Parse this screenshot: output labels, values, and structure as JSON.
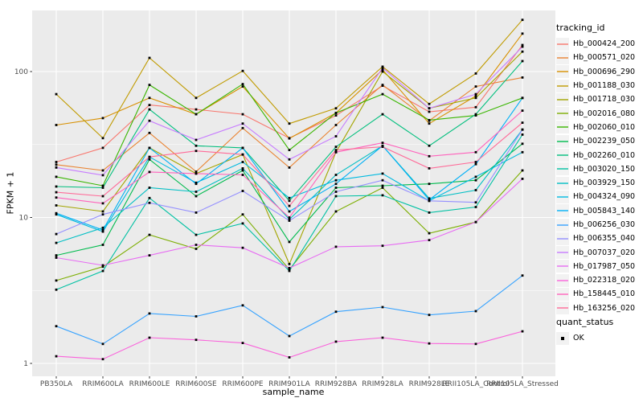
{
  "figure": {
    "background": "#FFFFFF",
    "panel_background": "#EBEBEB",
    "gridline_color": "#FFFFFF",
    "axis_text_color": "#4D4D4D",
    "tick_mark_color": "#333333",
    "point_color": "#000000",
    "legend_key_fill": "#F2F2F2"
  },
  "chart_data": {
    "type": "line",
    "xlabel": "sample_name",
    "ylabel": "FPKM + 1",
    "y_scale": "log10",
    "ylim": [
      0.82,
      262
    ],
    "y_ticks": [
      1,
      10,
      100
    ],
    "y_minor_ticks": [
      3.1623,
      31.623
    ],
    "grid": "on",
    "legend_position": "right",
    "categories": [
      "PB350LA",
      "RRIM600LA",
      "RRIM600LE",
      "RRIM600SE",
      "RRIM600PE",
      "RRIM901LA",
      "RRIM928BA",
      "RRIM928LA",
      "RRIM928LE",
      "RRII105LA_Control",
      "RRII105LA_Stressed"
    ],
    "series": [
      {
        "name": "Hb_000424_200",
        "color": "#F8766D",
        "values": [
          24,
          30,
          59,
          55,
          51,
          35,
          50,
          80,
          53,
          57,
          152
        ]
      },
      {
        "name": "Hb_000571_020",
        "color": "#EA8331",
        "values": [
          23,
          21,
          38,
          20.6,
          41,
          22,
          43,
          81,
          46,
          79,
          91
        ]
      },
      {
        "name": "Hb_000696_290",
        "color": "#D89000",
        "values": [
          43,
          48,
          66,
          51,
          79,
          34.8,
          52,
          103,
          44,
          68,
          182
        ]
      },
      {
        "name": "Hb_001188_030",
        "color": "#C09B00",
        "values": [
          70,
          35,
          124,
          66,
          101,
          44,
          56,
          108,
          60,
          97,
          226
        ]
      },
      {
        "name": "Hb_001718_030",
        "color": "#A3A500",
        "values": [
          12.1,
          11,
          30,
          20,
          27,
          4.8,
          28,
          100,
          56,
          66,
          137
        ]
      },
      {
        "name": "Hb_002016_080",
        "color": "#7CAE00",
        "values": [
          3.7,
          4.6,
          7.6,
          6.1,
          10.5,
          4.4,
          11,
          16,
          7.8,
          9.3,
          21
        ]
      },
      {
        "name": "Hb_002060_010",
        "color": "#39B600",
        "values": [
          19,
          16.5,
          81,
          51,
          82,
          29,
          52,
          70,
          46.5,
          50,
          66
        ]
      },
      {
        "name": "Hb_002239_050",
        "color": "#00BB4E",
        "values": [
          5.5,
          6.5,
          25,
          14,
          21,
          6.8,
          16,
          16.5,
          17,
          18,
          32
        ]
      },
      {
        "name": "Hb_002260_010",
        "color": "#00BF7D",
        "values": [
          16.3,
          16,
          55,
          31,
          30,
          13,
          30.5,
          51,
          31,
          51,
          118
        ]
      },
      {
        "name": "Hb_003020_150",
        "color": "#00C1A3",
        "values": [
          3.2,
          4.3,
          13.6,
          7.6,
          9.1,
          4.3,
          14,
          14.2,
          10.8,
          11.8,
          37
        ]
      },
      {
        "name": "Hb_003929_150",
        "color": "#00BFC4",
        "values": [
          6.7,
          8.5,
          16,
          15,
          21.7,
          9.7,
          19.6,
          31,
          13.5,
          15.4,
          40
        ]
      },
      {
        "name": "Hb_004324_090",
        "color": "#00BAE0",
        "values": [
          10.5,
          8,
          26,
          17.3,
          24,
          13.6,
          18,
          20,
          13,
          19,
          28
        ]
      },
      {
        "name": "Hb_005843_140",
        "color": "#00B0F6",
        "values": [
          10.7,
          8.2,
          30,
          17,
          30,
          11,
          17,
          31,
          13.2,
          23.2,
          66
        ]
      },
      {
        "name": "Hb_006256_030",
        "color": "#35A2FF",
        "values": [
          1.8,
          1.36,
          2.2,
          2.1,
          2.5,
          1.54,
          2.26,
          2.43,
          2.15,
          2.28,
          4.0
        ]
      },
      {
        "name": "Hb_006355_040",
        "color": "#9590FF",
        "values": [
          7.7,
          10.5,
          12.6,
          10.8,
          15.2,
          9.5,
          15,
          18,
          13,
          12.7,
          40
        ]
      },
      {
        "name": "Hb_007037_020",
        "color": "#C77CFF",
        "values": [
          22,
          19.5,
          46,
          34,
          44,
          25,
          36,
          106,
          56,
          70,
          148
        ]
      },
      {
        "name": "Hb_017987_050",
        "color": "#E76BF3",
        "values": [
          5.3,
          4.7,
          5.5,
          6.5,
          6.2,
          4.5,
          6.3,
          6.4,
          7.0,
          9.3,
          18.4
        ]
      },
      {
        "name": "Hb_022318_020",
        "color": "#FA62DB",
        "values": [
          1.12,
          1.07,
          1.5,
          1.45,
          1.38,
          1.1,
          1.41,
          1.5,
          1.37,
          1.36,
          1.66
        ]
      },
      {
        "name": "Hb_158445_010",
        "color": "#FF62BC",
        "values": [
          13.7,
          12.5,
          20.5,
          20,
          19.6,
          10,
          28,
          32.5,
          26.3,
          28,
          54
        ]
      },
      {
        "name": "Hb_163256_020",
        "color": "#FF6A98",
        "values": [
          14.9,
          14,
          26,
          28.6,
          27,
          12,
          29,
          30.5,
          21.7,
          24,
          44.6
        ]
      }
    ]
  },
  "legends": {
    "tracking": {
      "title": "tracking_id"
    },
    "quant": {
      "title": "quant_status",
      "items": [
        {
          "label": "OK",
          "shape": "square",
          "color": "#000000"
        }
      ]
    }
  }
}
